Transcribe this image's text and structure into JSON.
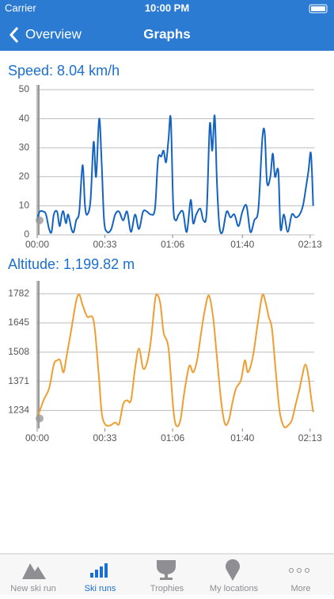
{
  "status_bar": {
    "carrier": "Carrier",
    "time": "10:00 PM"
  },
  "nav": {
    "back": "Overview",
    "title": "Graphs"
  },
  "chart_data": [
    {
      "type": "line",
      "title": "Speed:  8.04 km/h",
      "color": "#1463c2",
      "grid": true,
      "xlim": [
        0,
        135
      ],
      "ylim": [
        0,
        50
      ],
      "xticks": [
        {
          "value": 0,
          "label": "00:00"
        },
        {
          "value": 33,
          "label": "00:33"
        },
        {
          "value": 66,
          "label": "01:06"
        },
        {
          "value": 100,
          "label": "01:40"
        },
        {
          "value": 133,
          "label": "02:13"
        }
      ],
      "yticks": [
        0,
        10,
        20,
        30,
        40,
        50
      ],
      "x": [
        0,
        1.2,
        3.1,
        4.3,
        5.8,
        7.0,
        8.1,
        9.7,
        10.9,
        12.0,
        12.8,
        14.0,
        15.1,
        16.7,
        17.8,
        19.0,
        20.5,
        22.1,
        23.3,
        24.4,
        26.0,
        27.5,
        28.7,
        30.2,
        31.4,
        32.6,
        34.1,
        36.1,
        38.0,
        39.9,
        41.9,
        43.8,
        45.7,
        47.7,
        49.6,
        51.6,
        53.5,
        55.4,
        57.4,
        58.9,
        60.5,
        61.6,
        62.8,
        64.0,
        65.1,
        66.3,
        67.5,
        69.0,
        71.0,
        72.9,
        74.8,
        76.0,
        77.5,
        79.5,
        81.0,
        82.6,
        84.1,
        85.3,
        86.5,
        87.6,
        88.8,
        90.3,
        92.3,
        94.2,
        96.1,
        98.1,
        100.0,
        102.0,
        103.9,
        105.8,
        107.8,
        109.7,
        110.9,
        112.0,
        113.6,
        114.8,
        115.9,
        117.5,
        118.6,
        120.2,
        122.1,
        124.1,
        126.0,
        127.9,
        129.5,
        130.7,
        132.2,
        133.4,
        134.5
      ],
      "values": [
        5,
        8,
        8,
        7,
        2,
        1,
        7,
        8,
        3,
        7,
        8,
        4,
        7,
        2,
        1,
        5,
        8,
        24,
        10,
        7,
        12,
        32,
        20,
        40,
        25,
        5,
        1,
        2,
        7,
        8,
        5,
        8,
        1,
        7,
        2,
        8,
        8,
        7,
        9,
        26,
        27,
        29,
        25,
        33,
        40,
        10,
        5,
        7,
        8,
        1,
        12,
        4,
        7,
        9,
        5,
        8,
        38,
        29,
        41,
        18,
        3,
        1,
        8,
        6,
        7,
        3,
        8,
        10,
        1,
        5,
        9,
        33,
        35,
        18,
        20,
        28,
        20,
        22,
        2,
        7,
        1,
        7,
        6,
        7,
        10,
        15,
        22,
        28,
        10
      ]
    },
    {
      "type": "line",
      "title": "Altitude:  1,199.82 m",
      "color": "#ee9e32",
      "grid": true,
      "xlim": [
        0,
        135
      ],
      "ylim": [
        1150,
        1820
      ],
      "xticks": [
        {
          "value": 0,
          "label": "00:00"
        },
        {
          "value": 33,
          "label": "00:33"
        },
        {
          "value": 66,
          "label": "01:06"
        },
        {
          "value": 100,
          "label": "01:40"
        },
        {
          "value": 133,
          "label": "02:13"
        }
      ],
      "yticks": [
        1234,
        1371,
        1508,
        1645,
        1782
      ],
      "x": [
        0,
        3.1,
        5.8,
        8.1,
        9.7,
        11.2,
        12.8,
        14.3,
        16.7,
        19.0,
        20.5,
        22.1,
        24.4,
        27.5,
        29.9,
        31.4,
        33.0,
        35.3,
        38.0,
        39.9,
        41.9,
        43.8,
        45.7,
        47.7,
        49.6,
        51.6,
        53.5,
        55.4,
        57.4,
        58.5,
        60.1,
        61.6,
        64.0,
        66.3,
        67.8,
        69.8,
        71.7,
        74.1,
        76.0,
        77.9,
        79.9,
        81.8,
        83.7,
        85.7,
        87.2,
        89.6,
        91.5,
        93.4,
        95.0,
        96.9,
        99.3,
        101.2,
        102.7,
        105.1,
        107.4,
        109.7,
        111.3,
        112.8,
        114.4,
        116.3,
        118.2,
        120.2,
        122.1,
        124.1,
        126.0,
        127.9,
        129.1,
        130.7,
        132.2,
        133.4,
        134.5
      ],
      "values": [
        1197,
        1282,
        1338,
        1450,
        1469,
        1469,
        1413,
        1487,
        1618,
        1748,
        1778,
        1730,
        1674,
        1655,
        1413,
        1227,
        1171,
        1163,
        1178,
        1171,
        1264,
        1282,
        1282,
        1432,
        1525,
        1432,
        1458,
        1562,
        1748,
        1778,
        1730,
        1599,
        1525,
        1245,
        1163,
        1189,
        1320,
        1443,
        1413,
        1469,
        1599,
        1711,
        1774,
        1674,
        1525,
        1282,
        1171,
        1189,
        1264,
        1338,
        1376,
        1469,
        1413,
        1487,
        1637,
        1774,
        1741,
        1674,
        1618,
        1413,
        1227,
        1159,
        1163,
        1189,
        1264,
        1338,
        1394,
        1450,
        1394,
        1301,
        1227
      ]
    }
  ],
  "tab_bar": {
    "items": [
      "New ski run",
      "Ski runs",
      "Trophies",
      "My locations",
      "More"
    ]
  }
}
